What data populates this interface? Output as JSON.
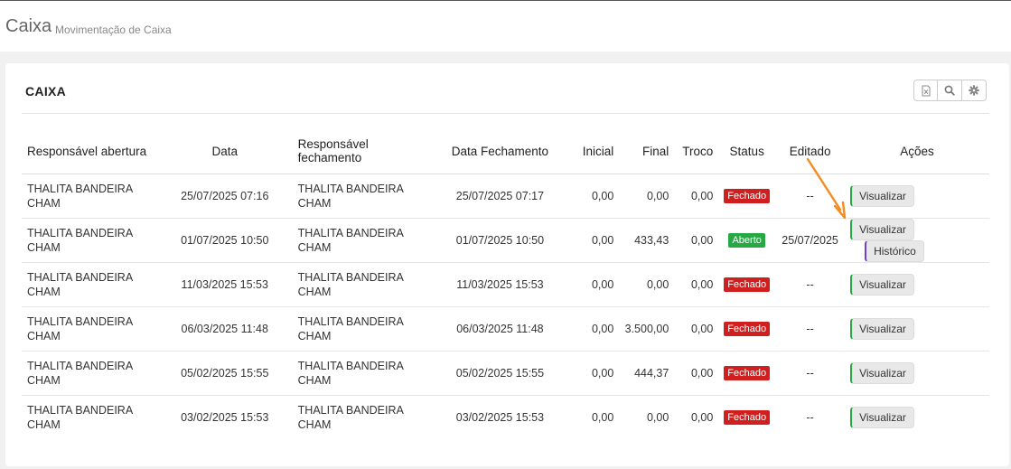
{
  "header": {
    "title": "Caixa",
    "subtitle": "Movimentação de Caixa"
  },
  "card": {
    "title": "CAIXA"
  },
  "toolbar": {
    "icons": [
      "excel-export-icon",
      "search-icon",
      "gear-icon"
    ]
  },
  "columns": {
    "resp_abertura": "Responsável abertura",
    "data": "Data",
    "resp_fechamento": "Responsável fechamento",
    "data_fechamento": "Data Fechamento",
    "inicial": "Inicial",
    "final": "Final",
    "troco": "Troco",
    "status": "Status",
    "editado": "Editado",
    "acoes": "Ações"
  },
  "colors": {
    "fechado": "#cf1f1f",
    "aberto": "#28a745",
    "visualizar_accent": "#28a745",
    "historico_accent": "#6f42c1",
    "arrow": "#f58a1f"
  },
  "rows": [
    {
      "resp_abertura": "THALITA BANDEIRA CHAM",
      "data": "25/07/2025 07:16",
      "resp_fechamento": "THALITA BANDEIRA CHAM",
      "data_fechamento": "25/07/2025 07:17",
      "inicial": "0,00",
      "final": "0,00",
      "troco": "0,00",
      "status": "Fechado",
      "editado": "--",
      "visualizar": "Visualizar"
    },
    {
      "resp_abertura": "THALITA BANDEIRA CHAM",
      "data": "01/07/2025 10:50",
      "resp_fechamento": "THALITA BANDEIRA CHAM",
      "data_fechamento": "01/07/2025 10:50",
      "inicial": "0,00",
      "final": "433,43",
      "troco": "0,00",
      "status": "Aberto",
      "editado": "25/07/2025",
      "visualizar": "Visualizar",
      "historico": "Histórico"
    },
    {
      "resp_abertura": "THALITA BANDEIRA CHAM",
      "data": "11/03/2025 15:53",
      "resp_fechamento": "THALITA BANDEIRA CHAM",
      "data_fechamento": "11/03/2025 15:53",
      "inicial": "0,00",
      "final": "0,00",
      "troco": "0,00",
      "status": "Fechado",
      "editado": "--",
      "visualizar": "Visualizar"
    },
    {
      "resp_abertura": "THALITA BANDEIRA CHAM",
      "data": "06/03/2025 11:48",
      "resp_fechamento": "THALITA BANDEIRA CHAM",
      "data_fechamento": "06/03/2025 11:48",
      "inicial": "0,00",
      "final": "3.500,00",
      "troco": "0,00",
      "status": "Fechado",
      "editado": "--",
      "visualizar": "Visualizar"
    },
    {
      "resp_abertura": "THALITA BANDEIRA CHAM",
      "data": "05/02/2025 15:55",
      "resp_fechamento": "THALITA BANDEIRA CHAM",
      "data_fechamento": "05/02/2025 15:55",
      "inicial": "0,00",
      "final": "444,37",
      "troco": "0,00",
      "status": "Fechado",
      "editado": "--",
      "visualizar": "Visualizar"
    },
    {
      "resp_abertura": "THALITA BANDEIRA CHAM",
      "data": "03/02/2025 15:53",
      "resp_fechamento": "THALITA BANDEIRA CHAM",
      "data_fechamento": "03/02/2025 15:53",
      "inicial": "0,00",
      "final": "0,00",
      "troco": "0,00",
      "status": "Fechado",
      "editado": "--",
      "visualizar": "Visualizar"
    }
  ]
}
